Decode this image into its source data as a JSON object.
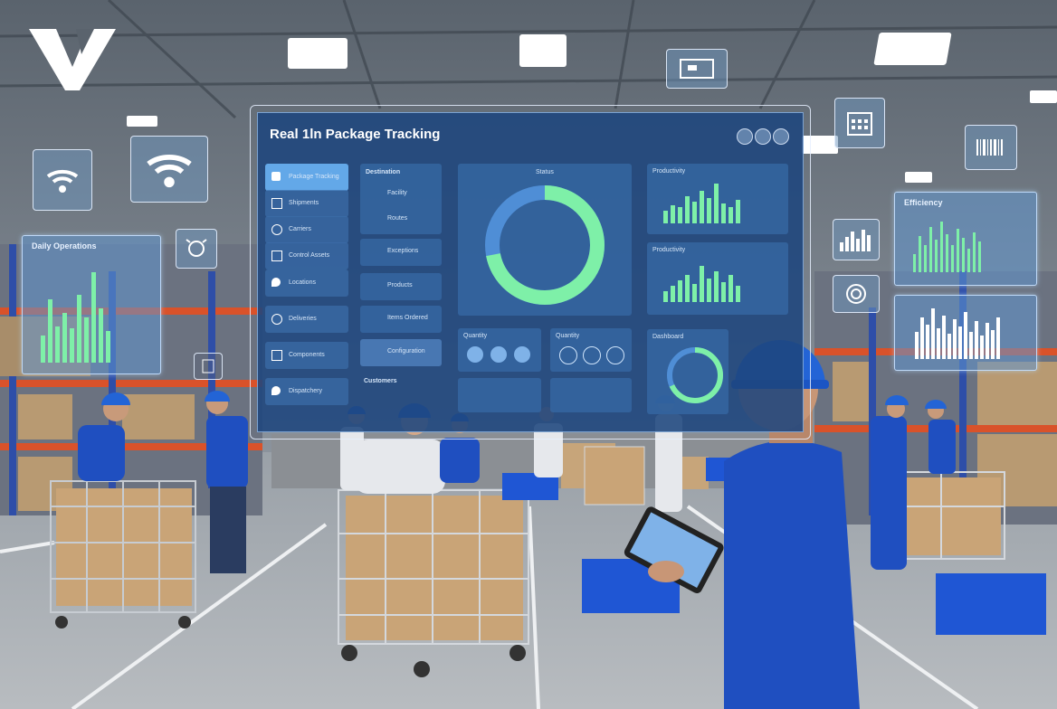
{
  "dashboard": {
    "title": "Real 1ln Package Tracking",
    "nav_items": [
      {
        "label": "Package Tracking",
        "active": true
      },
      {
        "label": "Shipments"
      },
      {
        "label": "Carriers"
      },
      {
        "label": "Control Assets"
      },
      {
        "label": "Locations"
      },
      {
        "label": "Deliveries"
      },
      {
        "label": "Components"
      },
      {
        "label": "Dispatchery"
      }
    ],
    "list_header": "Destination",
    "list_items": [
      "Facility",
      "Routes",
      "Exceptions",
      "Products",
      "Items Ordered",
      "Configuration"
    ],
    "list_footer": "Customers",
    "donut_label": "Status",
    "donut_fraction": 0.72,
    "bottom_cards": [
      "Quantity",
      "Quantity"
    ],
    "right_titles": [
      "Productivity",
      "Productivity",
      "Dashboard"
    ]
  },
  "left_panel_title": "Daily Operations",
  "right_panel_title": "Efficiency",
  "colors": {
    "accent": "#7ef0a8",
    "panel": "#3a6aa8",
    "worker_blue": "#1f4fc0",
    "helmet": "#2364d6"
  },
  "icons": [
    "wifi-icon",
    "wifi-icon",
    "robot-icon",
    "document-icon",
    "calendar-icon",
    "barcode-icon",
    "chart-icon",
    "target-icon",
    "monitor-icon"
  ]
}
